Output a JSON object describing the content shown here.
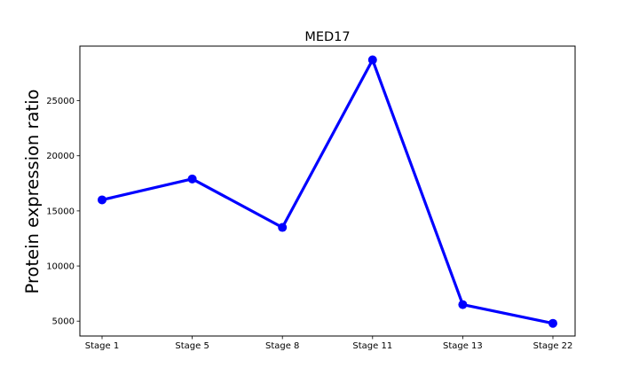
{
  "chart_data": {
    "type": "line",
    "title": "MED17",
    "xlabel": "",
    "ylabel": "Protein expression ratio",
    "categories": [
      "Stage 1",
      "Stage 5",
      "Stage 8",
      "Stage 11",
      "Stage 13",
      "Stage 22"
    ],
    "series": [
      {
        "values": [
          16000,
          17900,
          13500,
          28700,
          6500,
          4800
        ],
        "color": "#0000ff"
      }
    ],
    "ylim": [
      3650,
      29950
    ],
    "yticks": [
      5000,
      10000,
      15000,
      20000,
      25000
    ],
    "grid": false,
    "legend": "none"
  }
}
